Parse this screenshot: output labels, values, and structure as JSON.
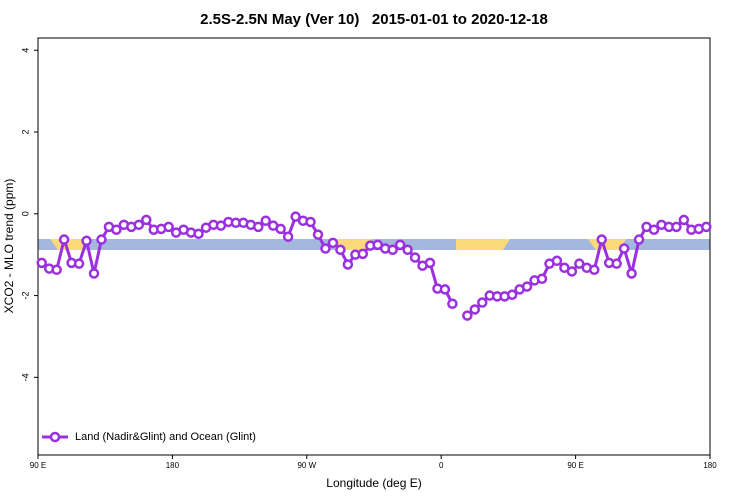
{
  "chart_data": {
    "type": "line",
    "title": "2.5S-2.5N May (Ver 10)   2015-01-01 to 2020-12-18",
    "x_label": "Longitude (deg E)",
    "y_label": "XCO2 - MLO trend (ppm)",
    "xlim": [
      90,
      540
    ],
    "xticks": [
      {
        "value": 90,
        "label": "90 E"
      },
      {
        "value": 180,
        "label": "180"
      },
      {
        "value": 270,
        "label": "90 W"
      },
      {
        "value": 360,
        "label": "0"
      },
      {
        "value": 450,
        "label": "90 E"
      },
      {
        "value": 540,
        "label": "180"
      }
    ],
    "ylim": [
      -5.9,
      4.3
    ],
    "yticks": [
      -4,
      -2,
      0,
      2,
      4
    ],
    "legend": "bottom-left",
    "x": [
      92.5,
      97.5,
      102.5,
      107.5,
      112.5,
      117.5,
      122.5,
      127.5,
      132.5,
      137.5,
      142.5,
      147.5,
      152.5,
      157.5,
      162.5,
      167.5,
      172.5,
      177.5,
      182.5,
      187.5,
      192.5,
      197.5,
      202.5,
      207.5,
      212.5,
      217.5,
      222.5,
      227.5,
      232.5,
      237.5,
      242.5,
      247.5,
      252.5,
      257.5,
      262.5,
      267.5,
      272.5,
      277.5,
      282.5,
      287.5,
      292.5,
      297.5,
      302.5,
      307.5,
      312.5,
      317.5,
      322.5,
      327.5,
      332.5,
      337.5,
      342.5,
      347.5,
      352.5,
      357.5,
      362.5,
      367.5,
      372.5,
      377.5,
      382.5,
      387.5,
      392.5,
      397.5,
      402.5,
      407.5,
      412.5,
      417.5,
      422.5,
      427.5,
      432.5,
      437.5,
      442.5,
      447.5,
      452.5,
      457.5,
      462.5,
      467.5,
      472.5,
      477.5,
      482.5,
      487.5,
      492.5,
      497.5,
      502.5,
      507.5,
      512.5,
      517.5,
      522.5,
      527.5,
      532.5,
      537.5
    ],
    "series": [
      {
        "name": "Land (Nadir&Glint) and Ocean (Glint)",
        "color": "#9b30e0",
        "values": [
          -1.2,
          -1.34,
          -1.37,
          -0.63,
          -1.2,
          -1.22,
          -0.66,
          -1.46,
          -0.63,
          -0.32,
          -0.39,
          -0.27,
          -0.32,
          -0.27,
          -0.15,
          -0.39,
          -0.37,
          -0.32,
          -0.46,
          -0.39,
          -0.46,
          -0.49,
          -0.34,
          -0.27,
          -0.29,
          -0.2,
          -0.22,
          -0.22,
          -0.27,
          -0.32,
          -0.17,
          -0.29,
          -0.37,
          -0.56,
          -0.07,
          -0.17,
          -0.2,
          -0.51,
          -0.85,
          -0.71,
          -0.88,
          -1.24,
          -1.0,
          -0.98,
          -0.78,
          -0.76,
          -0.85,
          -0.88,
          -0.76,
          -0.88,
          -1.07,
          -1.27,
          -1.2,
          -1.83,
          -1.85,
          -2.2,
          null,
          -2.49,
          -2.34,
          -2.17,
          -2.0,
          -2.02,
          -2.02,
          -1.98,
          -1.85,
          -1.78,
          -1.63,
          -1.59,
          -1.22,
          -1.15,
          -1.32,
          -1.41,
          -1.22,
          -1.32,
          -1.37,
          -0.63,
          -1.2,
          -1.22,
          -0.85,
          -1.46,
          -0.63,
          -0.32,
          -0.39,
          -0.27,
          -0.32,
          -0.32,
          -0.15,
          -0.39,
          -0.37,
          -0.32
        ]
      }
    ]
  }
}
